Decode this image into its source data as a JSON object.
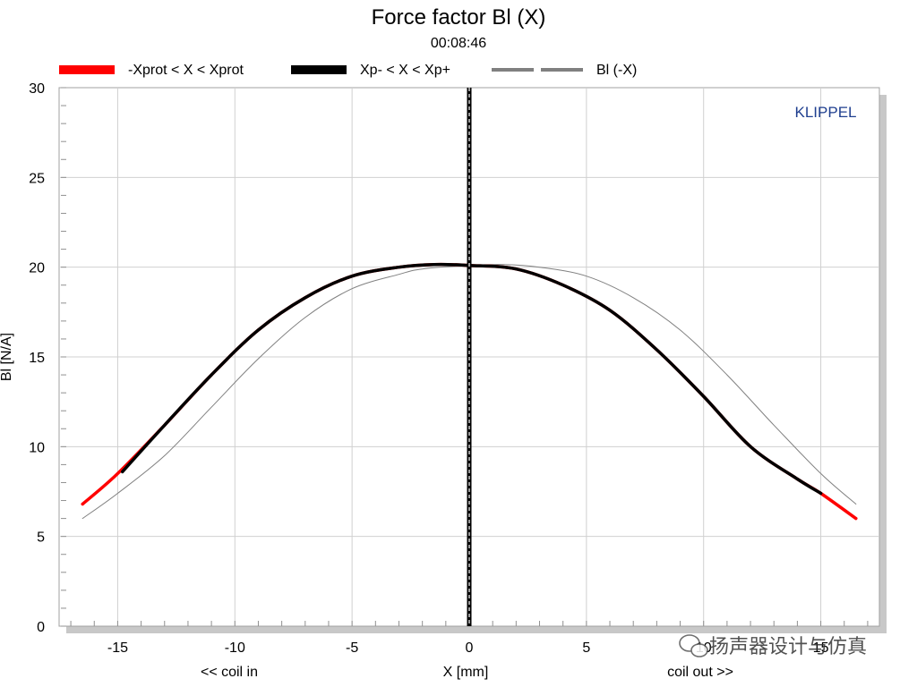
{
  "chart_data": {
    "type": "line",
    "title": "Force factor Bl (X)",
    "subtitle": "00:08:46",
    "xlabel": "X [mm]",
    "ylabel": "Bl [N/A]",
    "x_annotation_left": "<< coil in",
    "x_annotation_right": "coil out >>",
    "brand": "KLIPPEL",
    "watermark": "扬声器设计与仿真",
    "xlim": [
      -17.5,
      17.5
    ],
    "ylim": [
      0,
      30
    ],
    "xticks": [
      -15,
      -10,
      -5,
      0,
      5,
      10,
      15
    ],
    "yticks": [
      0,
      5,
      10,
      15,
      20,
      25,
      30
    ],
    "grid": true,
    "legend_position": "top",
    "legend": [
      {
        "label": "-Xprot < X < Xprot",
        "color": "#ff0000",
        "style": "solid"
      },
      {
        "label": "Xp- < X < Xp+",
        "color": "#000000",
        "style": "solid"
      },
      {
        "label": "Bl (-X)",
        "color": "#808080",
        "style": "dashed"
      }
    ],
    "colors": {
      "protection": "#ff0000",
      "peak": "#000000",
      "mirror": "#808080",
      "brand": "#1f3f8f"
    },
    "series": [
      {
        "name": "-Xprot < X < Xprot",
        "color": "#ff0000",
        "x": [
          -16.5,
          -15,
          -13,
          -11,
          -9,
          -7,
          -5,
          -3,
          -1.5,
          0,
          2,
          4,
          6,
          8,
          10,
          12,
          14,
          15,
          16.5
        ],
        "y": [
          6.8,
          8.5,
          11.2,
          14.0,
          16.5,
          18.3,
          19.5,
          20.0,
          20.15,
          20.1,
          19.9,
          19.0,
          17.6,
          15.4,
          12.8,
          10.0,
          8.2,
          7.4,
          6.0
        ]
      },
      {
        "name": "Xp- < X < Xp+",
        "color": "#000000",
        "x": [
          -14.8,
          -13,
          -11,
          -9,
          -7,
          -5,
          -3,
          -1.5,
          0,
          2,
          4,
          6,
          8,
          10,
          12,
          14,
          15
        ],
        "y": [
          8.6,
          11.2,
          14.0,
          16.5,
          18.3,
          19.5,
          20.0,
          20.15,
          20.1,
          19.9,
          19.0,
          17.6,
          15.4,
          12.8,
          10.0,
          8.2,
          7.4
        ]
      },
      {
        "name": "Bl (-X)",
        "color": "#808080",
        "x": [
          -16.5,
          -15,
          -13,
          -11,
          -9,
          -7,
          -5,
          -3,
          -2,
          0,
          1.5,
          3,
          5,
          7,
          9,
          11,
          13,
          15,
          16.5
        ],
        "y": [
          6.0,
          7.4,
          9.5,
          12.2,
          14.9,
          17.2,
          18.8,
          19.6,
          19.9,
          20.1,
          20.15,
          20.0,
          19.5,
          18.3,
          16.5,
          14.0,
          11.2,
          8.5,
          6.8
        ]
      }
    ],
    "vertical_markers": [
      0
    ]
  }
}
